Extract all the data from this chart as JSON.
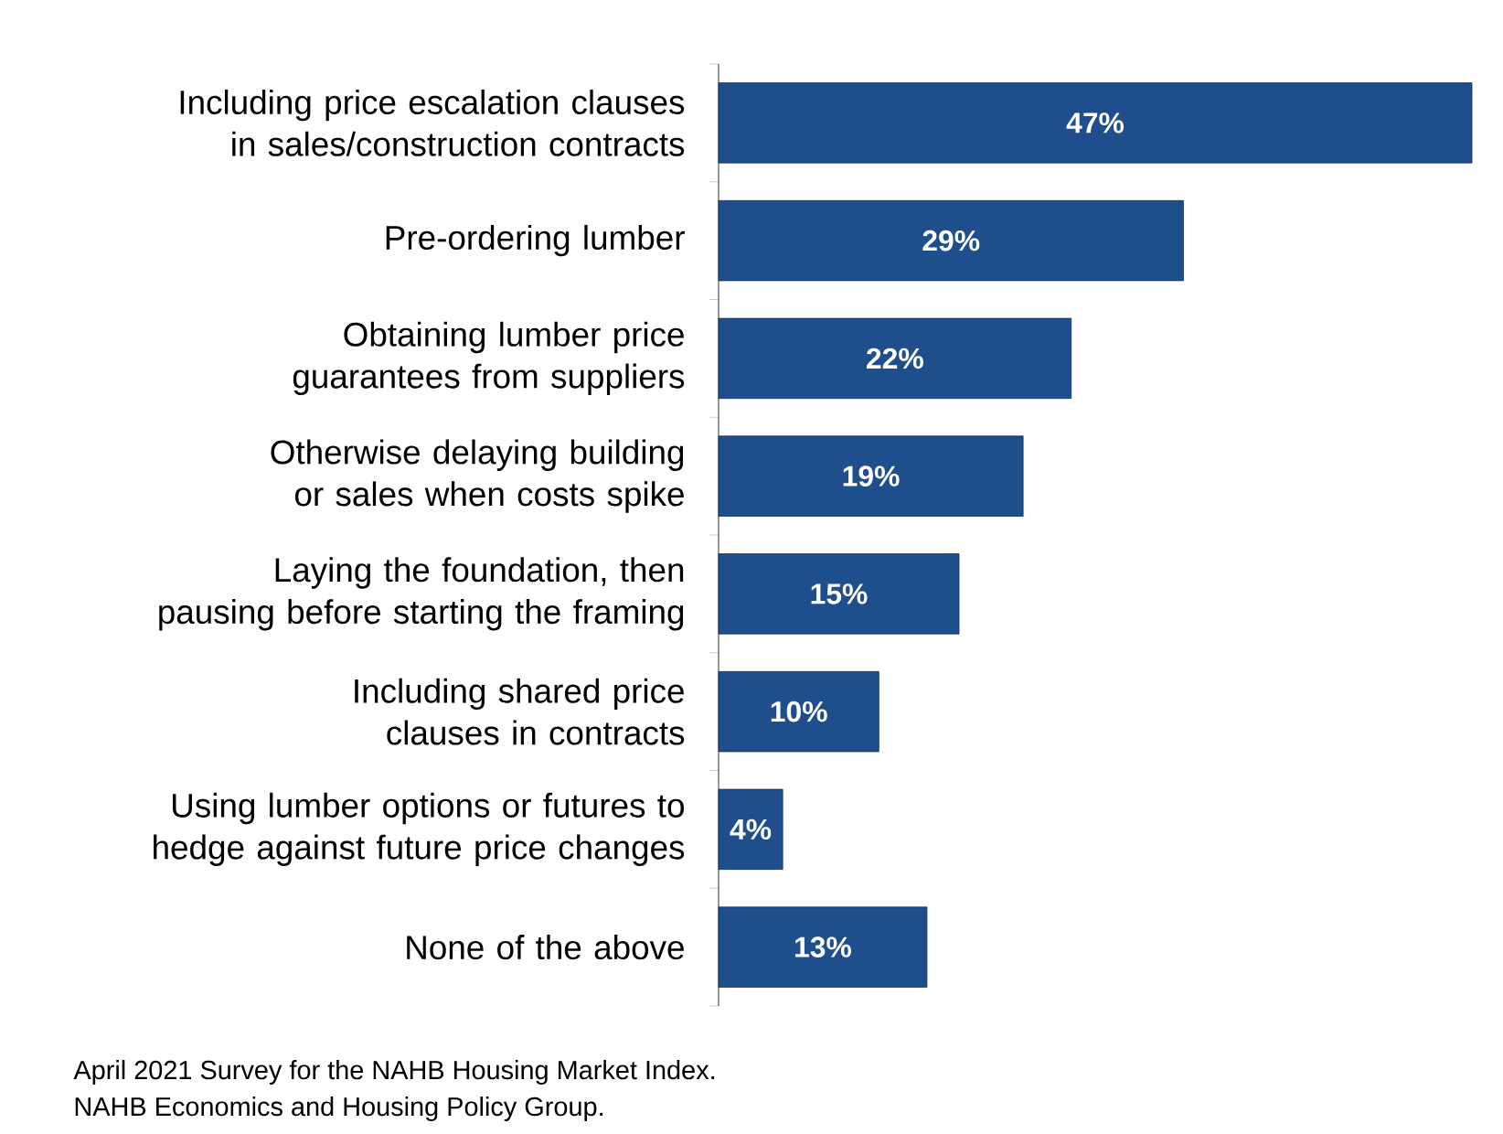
{
  "chart_data": {
    "type": "bar",
    "orientation": "horizontal",
    "color": "#1f4e8c",
    "categories": [
      "Including price escalation clauses in sales/construction contracts",
      "Pre-ordering lumber",
      "Obtaining lumber price guarantees from suppliers",
      "Otherwise delaying building or sales when costs spike",
      "Laying the foundation, then pausing before starting the framing",
      "Including shared price clauses in contracts",
      "Using lumber options or futures to hedge against future price changes",
      "None of the above"
    ],
    "values": [
      47,
      29,
      22,
      19,
      15,
      10,
      4,
      13
    ],
    "value_labels": [
      "47%",
      "29%",
      "22%",
      "19%",
      "15%",
      "10%",
      "4%",
      "13%"
    ],
    "annotations": [
      "April 2021 Survey for the NAHB Housing Market Index.",
      "NAHB Economics and Housing Policy Group."
    ]
  }
}
